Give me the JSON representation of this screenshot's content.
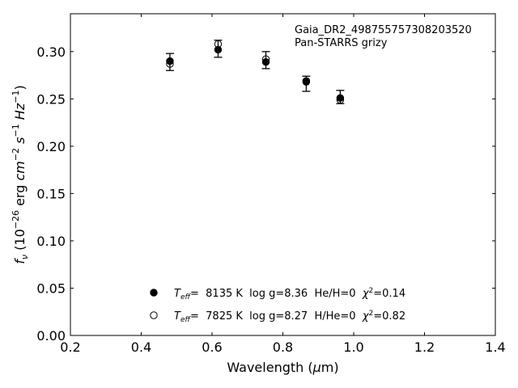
{
  "chart_data": {
    "type": "scatter",
    "xlabel": "Wavelength (μm)",
    "ylabel": "fν (10⁻²⁶ erg cm⁻² s⁻¹ Hz⁻¹)",
    "xlim": [
      0.2,
      1.4
    ],
    "ylim": [
      0.0,
      0.34
    ],
    "xticks": [
      "0.2",
      "0.4",
      "0.6",
      "0.8",
      "1.0",
      "1.2",
      "1.4"
    ],
    "yticks": [
      "0.00",
      "0.05",
      "0.10",
      "0.15",
      "0.20",
      "0.25",
      "0.30"
    ],
    "annotation_lines": [
      "Gaia_DR2_4987557573082035​20",
      "Pan-STARRS grizy"
    ],
    "observed": {
      "x": [
        0.481,
        0.617,
        0.752,
        0.866,
        0.962
      ],
      "y": [
        0.289,
        0.303,
        0.291,
        0.266,
        0.252
      ],
      "err": [
        0.009,
        0.009,
        0.009,
        0.008,
        0.007
      ]
    },
    "series": [
      {
        "name": "Teff=  8135 K  log g=8.36  He/H=0  χ²=0.14",
        "marker": "filled-circle",
        "x": [
          0.481,
          0.617,
          0.752,
          0.866,
          0.962
        ],
        "y": [
          0.29,
          0.302,
          0.289,
          0.268,
          0.251
        ]
      },
      {
        "name": "Teff=  7825 K  log g=8.27  H/He=0  χ²=0.82",
        "marker": "open-circle",
        "x": [
          0.481,
          0.617,
          0.752,
          0.866,
          0.962
        ],
        "y": [
          0.287,
          0.308,
          0.292,
          0.269,
          0.249
        ]
      }
    ],
    "legend_position": "bottom-center",
    "grid": false
  }
}
